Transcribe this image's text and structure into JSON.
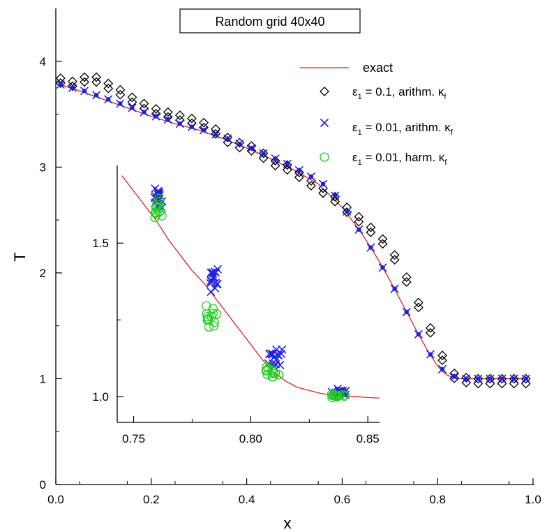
{
  "chart_data": [
    {
      "type": "scatter",
      "title": "Random grid 40x40",
      "xlabel": "x",
      "ylabel": "T",
      "xlim": [
        0.0,
        1.0
      ],
      "ylim": [
        0.0,
        4.5
      ],
      "xticks": [
        "0.0",
        "0.2",
        "0.4",
        "0.6",
        "0.8",
        "1.0"
      ],
      "xtick_values": [
        0.0,
        0.2,
        0.4,
        0.6,
        0.8,
        1.0
      ],
      "yticks": [
        "0",
        "1",
        "2",
        "3",
        "4"
      ],
      "ytick_values": [
        0,
        1,
        2,
        3,
        4
      ],
      "legend": {
        "placement": "top-right",
        "entries": [
          {
            "label": "exact",
            "marker": "line",
            "color": "#e0201c"
          },
          {
            "label_parts": [
              "ε",
              "1",
              " = 0.1, arithm. κ",
              "f"
            ],
            "marker": "diamond",
            "color": "#000000"
          },
          {
            "label_parts": [
              "ε",
              "1",
              " = 0.01, arithm. κ",
              "f"
            ],
            "marker": "cross",
            "color": "#2020e0"
          },
          {
            "label_parts": [
              "ε",
              "1",
              " = 0.01, harm. κ",
              "f"
            ],
            "marker": "circle",
            "color": "#22cc22"
          }
        ]
      },
      "exact_curve": {
        "x": [
          0.01,
          0.05,
          0.1,
          0.15,
          0.2,
          0.25,
          0.3,
          0.35,
          0.4,
          0.45,
          0.5,
          0.55,
          0.6,
          0.62,
          0.64,
          0.66,
          0.68,
          0.7,
          0.72,
          0.74,
          0.76,
          0.78,
          0.8,
          0.81,
          0.82,
          0.83,
          0.84,
          0.86,
          0.9,
          0.95,
          0.99
        ],
        "y": [
          3.78,
          3.72,
          3.64,
          3.56,
          3.48,
          3.41,
          3.35,
          3.27,
          3.18,
          3.08,
          2.97,
          2.84,
          2.62,
          2.5,
          2.38,
          2.24,
          2.09,
          1.93,
          1.76,
          1.59,
          1.42,
          1.26,
          1.12,
          1.07,
          1.035,
          1.015,
          1.005,
          1.0,
          1.0,
          1.0,
          1.0
        ]
      },
      "series": [
        {
          "marker": "diamond",
          "x": [
            0.01,
            0.035,
            0.06,
            0.085,
            0.11,
            0.135,
            0.16,
            0.185,
            0.21,
            0.235,
            0.26,
            0.285,
            0.31,
            0.335,
            0.36,
            0.385,
            0.41,
            0.435,
            0.46,
            0.485,
            0.51,
            0.535,
            0.56,
            0.585,
            0.61,
            0.635,
            0.66,
            0.685,
            0.71,
            0.735,
            0.76,
            0.785,
            0.81,
            0.835,
            0.86,
            0.885,
            0.91,
            0.935,
            0.96,
            0.985
          ],
          "y": [
            3.84,
            3.81,
            3.85,
            3.85,
            3.79,
            3.73,
            3.66,
            3.6,
            3.55,
            3.52,
            3.49,
            3.46,
            3.42,
            3.36,
            3.28,
            3.23,
            3.2,
            3.13,
            3.06,
            3.02,
            2.95,
            2.87,
            2.8,
            2.72,
            2.62,
            2.53,
            2.43,
            2.32,
            2.17,
            1.96,
            1.72,
            1.48,
            1.22,
            1.05,
            1.01,
            1.0,
            1.0,
            1.0,
            1.0,
            1.0
          ]
        },
        {
          "marker": "cross",
          "x": [
            0.01,
            0.035,
            0.06,
            0.085,
            0.11,
            0.135,
            0.16,
            0.185,
            0.21,
            0.235,
            0.26,
            0.285,
            0.31,
            0.335,
            0.36,
            0.385,
            0.41,
            0.435,
            0.46,
            0.485,
            0.51,
            0.535,
            0.56,
            0.585,
            0.61,
            0.635,
            0.66,
            0.685,
            0.71,
            0.735,
            0.76,
            0.785,
            0.81,
            0.835,
            0.86,
            0.885,
            0.91,
            0.935,
            0.96,
            0.985
          ],
          "y": [
            3.78,
            3.75,
            3.72,
            3.68,
            3.64,
            3.6,
            3.56,
            3.52,
            3.48,
            3.45,
            3.41,
            3.38,
            3.35,
            3.31,
            3.27,
            3.22,
            3.18,
            3.13,
            3.08,
            3.03,
            2.97,
            2.91,
            2.84,
            2.73,
            2.58,
            2.41,
            2.24,
            2.05,
            1.85,
            1.63,
            1.42,
            1.23,
            1.09,
            1.02,
            1.0,
            1.0,
            1.0,
            1.0,
            1.0,
            1.0
          ]
        }
      ]
    },
    {
      "type": "scatter",
      "xlim": [
        0.743,
        0.855
      ],
      "ylim": [
        0.916,
        1.753
      ],
      "xticks": [
        "0.75",
        "0.80",
        "0.85"
      ],
      "xtick_values": [
        0.75,
        0.8,
        0.85
      ],
      "yticks": [
        "1.0",
        "1.5"
      ],
      "ytick_values": [
        1.0,
        1.5
      ],
      "exact_curve": {
        "x": [
          0.745,
          0.75,
          0.755,
          0.76,
          0.765,
          0.77,
          0.775,
          0.78,
          0.785,
          0.79,
          0.795,
          0.8,
          0.805,
          0.81,
          0.815,
          0.82,
          0.825,
          0.83,
          0.835,
          0.84,
          0.845,
          0.85,
          0.855
        ],
        "y": [
          1.72,
          1.67,
          1.62,
          1.57,
          1.51,
          1.46,
          1.41,
          1.37,
          1.32,
          1.27,
          1.22,
          1.17,
          1.12,
          1.08,
          1.05,
          1.03,
          1.02,
          1.01,
          1.005,
          1.0,
          1.0,
          0.997,
          0.995
        ]
      },
      "clusters": [
        {
          "series": "cross",
          "x": [
            0.758,
            0.763
          ],
          "y": [
            1.6,
            1.69
          ]
        },
        {
          "series": "circle",
          "x": [
            0.758,
            0.764
          ],
          "y": [
            1.56,
            1.66
          ]
        },
        {
          "series": "cross",
          "x": [
            0.781,
            0.787
          ],
          "y": [
            1.34,
            1.43
          ]
        },
        {
          "series": "circle",
          "x": [
            0.78,
            0.787
          ],
          "y": [
            1.21,
            1.31
          ]
        },
        {
          "series": "cross",
          "x": [
            0.806,
            0.816
          ],
          "y": [
            1.09,
            1.16
          ]
        },
        {
          "series": "circle",
          "x": [
            0.805,
            0.814
          ],
          "y": [
            1.06,
            1.1
          ]
        },
        {
          "series": "cross",
          "x": [
            0.833,
            0.842
          ],
          "y": [
            1.0,
            1.03
          ]
        },
        {
          "series": "circle",
          "x": [
            0.833,
            0.842
          ],
          "y": [
            0.995,
            1.01
          ]
        }
      ]
    }
  ]
}
